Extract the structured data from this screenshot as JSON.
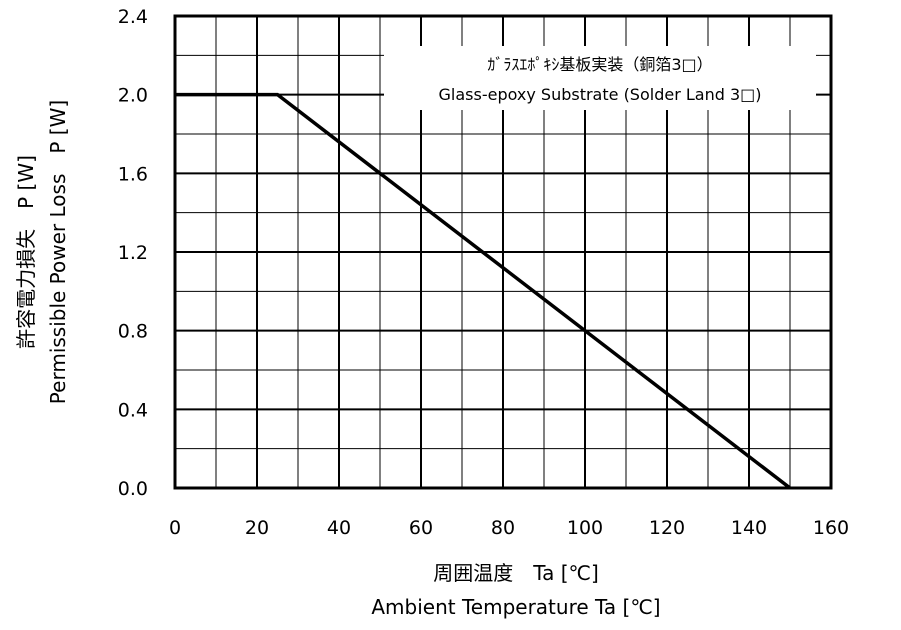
{
  "chart_data": {
    "type": "line",
    "x_axis": {
      "title_jp": "周囲温度　Ta [℃]",
      "title_en": "Ambient Temperature Ta [℃]",
      "range": [
        0,
        160
      ],
      "ticks": [
        "0",
        "20",
        "40",
        "60",
        "80",
        "100",
        "120",
        "140",
        "160"
      ]
    },
    "y_axis": {
      "title_jp": "許容電力損失　P [W]",
      "title_en": "Permissible Power Loss　P [W]",
      "range": [
        0,
        2.4
      ],
      "ticks": [
        "0.0",
        "0.4",
        "0.8",
        "1.2",
        "1.6",
        "2.0",
        "2.4"
      ]
    },
    "grid": true,
    "legend_position": "top-right",
    "legend": {
      "line1": "ｶﾞﾗｽｴﾎﾟｷｼ基板実装（銅箔3□）",
      "line2": "Glass-epoxy Substrate (Solder Land 3□)"
    },
    "series": [
      {
        "x": [
          0,
          25,
          150
        ],
        "y": [
          2.0,
          2.0,
          0.0
        ]
      }
    ]
  }
}
